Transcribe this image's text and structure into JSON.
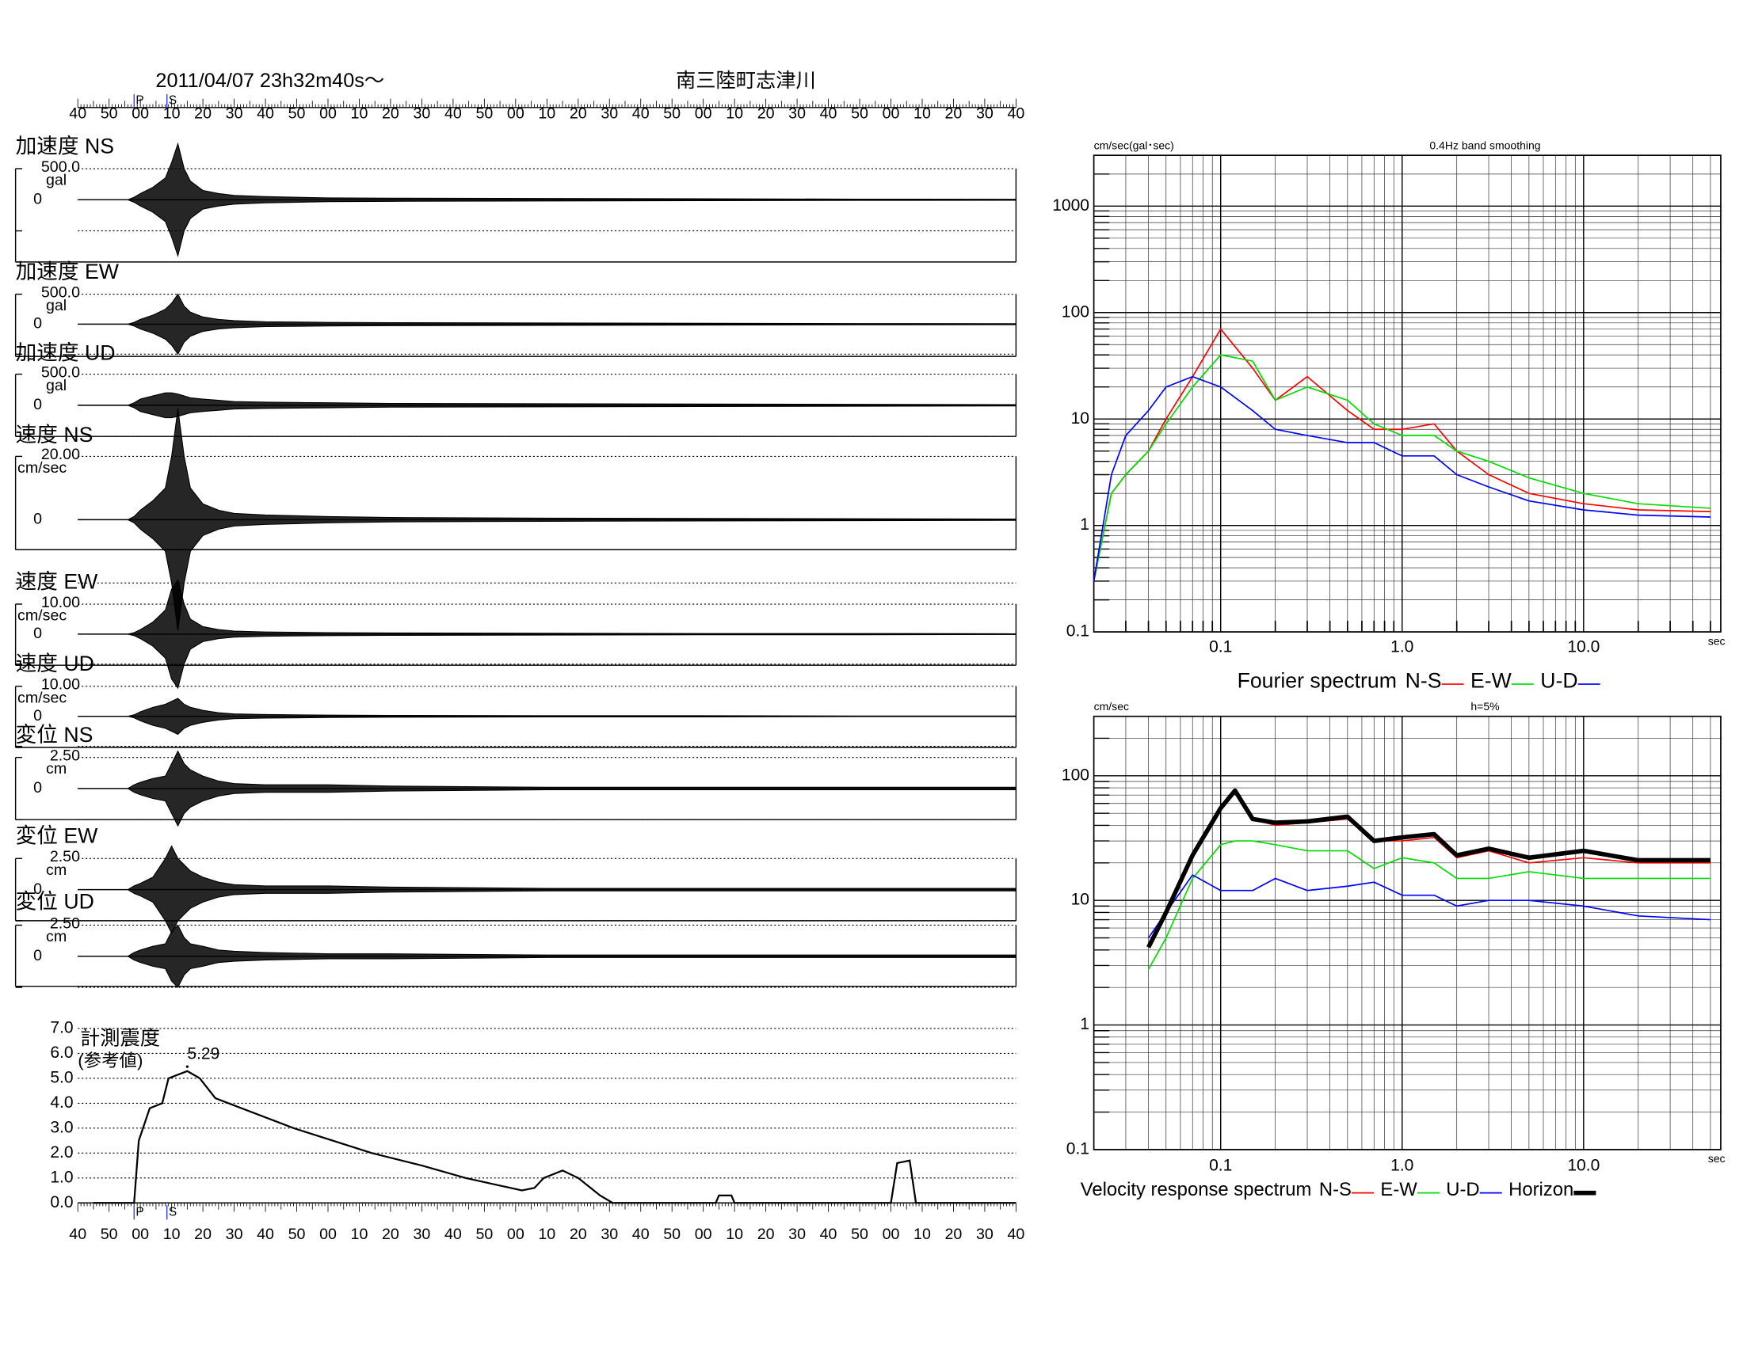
{
  "header": {
    "datetime": "2011/04/07  23h32m40s〜",
    "station": "南三陸町志津川"
  },
  "chart_data": [
    {
      "type": "waveforms",
      "tlim": [
        0,
        300
      ],
      "time_labels": [
        "40",
        "50",
        "00",
        "10",
        "20",
        "30",
        "40",
        "50",
        "00",
        "10",
        "20",
        "30",
        "40",
        "50",
        "00",
        "10",
        "20",
        "30",
        "40",
        "50",
        "00",
        "10",
        "20",
        "30",
        "40",
        "50",
        "00",
        "10",
        "20",
        "30",
        "40"
      ],
      "markers": [
        {
          "label": "P",
          "t": 18
        },
        {
          "label": "S",
          "t": 28.5
        }
      ],
      "color": "#000000",
      "t": [
        0,
        16,
        18,
        20,
        24,
        28,
        30,
        32,
        34,
        36,
        40,
        45,
        50,
        60,
        80,
        100,
        150,
        200,
        250,
        300
      ],
      "traces": [
        {
          "title": "加速度 NS",
          "scale": {
            "value": 500,
            "label": "500.0"
          },
          "unit": "gal",
          "zero": 0,
          "values": [
            0,
            0,
            40,
            100,
            200,
            350,
            600,
            900,
            500,
            300,
            150,
            100,
            70,
            50,
            30,
            25,
            20,
            15,
            10,
            8
          ]
        },
        {
          "title": "加速度 EW",
          "scale": {
            "value": 500,
            "label": "500.0"
          },
          "unit": "gal",
          "zero": 0,
          "values": [
            0,
            0,
            30,
            80,
            150,
            250,
            350,
            500,
            300,
            200,
            120,
            80,
            60,
            40,
            30,
            25,
            20,
            15,
            10,
            8
          ]
        },
        {
          "title": "加速度 UD",
          "scale": {
            "value": 500,
            "label": "500.0"
          },
          "unit": "gal",
          "zero": 0,
          "values": [
            0,
            0,
            40,
            100,
            150,
            200,
            200,
            180,
            150,
            120,
            100,
            80,
            60,
            50,
            40,
            30,
            25,
            20,
            15,
            10
          ]
        },
        {
          "title": "速度 NS",
          "scale": {
            "value": 20,
            "label": "20.00"
          },
          "unit": "cm/sec",
          "zero": 0,
          "values": [
            0,
            0,
            1,
            3,
            6,
            10,
            20,
            35,
            20,
            10,
            5,
            3,
            2,
            1.5,
            1,
            0.7,
            0.5,
            0.4,
            0.3,
            0.2
          ]
        },
        {
          "title": "速度 EW",
          "scale": {
            "value": 10,
            "label": "10.00"
          },
          "unit": "cm/sec",
          "zero": 0,
          "values": [
            0,
            0,
            0.5,
            1.5,
            4,
            8,
            15,
            18,
            10,
            5,
            2.5,
            1.5,
            1,
            0.7,
            0.5,
            0.4,
            0.3,
            0.2,
            0.2,
            0.1
          ]
        },
        {
          "title": "速度 UD",
          "scale": {
            "value": 10,
            "label": "10.00"
          },
          "unit": "cm/sec",
          "zero": 0,
          "values": [
            0,
            0,
            0.5,
            1.5,
            3,
            4,
            5,
            6,
            4,
            3,
            2,
            1.2,
            0.8,
            0.6,
            0.4,
            0.3,
            0.2,
            0.2,
            0.1,
            0.1
          ]
        },
        {
          "title": "変位 NS",
          "scale": {
            "value": 2.5,
            "label": "2.50"
          },
          "unit": "cm",
          "zero": 0,
          "values": [
            0,
            0,
            0.3,
            0.5,
            0.8,
            1,
            2,
            3,
            2,
            1.5,
            1,
            0.6,
            0.4,
            0.3,
            0.3,
            0.2,
            0.1,
            0.1,
            0.1,
            0.1
          ]
        },
        {
          "title": "変位 EW",
          "scale": {
            "value": 2.5,
            "label": "2.50"
          },
          "unit": "cm",
          "zero": 0,
          "values": [
            0,
            0,
            0.3,
            0.5,
            1,
            2.5,
            3.5,
            2.5,
            2,
            1.5,
            1,
            0.6,
            0.4,
            0.3,
            0.3,
            0.2,
            0.1,
            0.1,
            0.1,
            0.1
          ]
        },
        {
          "title": "変位 UD",
          "scale": {
            "value": 2.5,
            "label": "2.50"
          },
          "unit": "cm",
          "zero": 0,
          "values": [
            0,
            0,
            0.3,
            0.5,
            0.8,
            1,
            2,
            2.5,
            1.5,
            1,
            0.8,
            0.5,
            0.4,
            0.3,
            0.2,
            0.2,
            0.1,
            0.1,
            0.1,
            0.1
          ]
        }
      ]
    },
    {
      "type": "line",
      "title": "計測震度",
      "subtitle": "(参考値)",
      "color": "#000000",
      "t": [
        5,
        18,
        19.5,
        23,
        27,
        29,
        35,
        39,
        44,
        69,
        94,
        110,
        124,
        142,
        146,
        149,
        155,
        160,
        164,
        167,
        171,
        204,
        205,
        209,
        210,
        260,
        262,
        266,
        268,
        300
      ],
      "values": [
        0,
        0,
        2.5,
        3.8,
        4.0,
        5.0,
        5.29,
        5.0,
        4.2,
        3.0,
        2.0,
        1.5,
        1.0,
        0.5,
        0.6,
        1.0,
        1.3,
        1.0,
        0.6,
        0.3,
        0,
        0,
        0.3,
        0.3,
        0,
        0,
        1.6,
        1.7,
        0,
        0
      ],
      "peak": {
        "t": 35,
        "value": 5.29
      },
      "ylim": [
        0,
        7
      ],
      "yticks": [
        {
          "value": 0,
          "label": "0.0"
        },
        {
          "value": 1,
          "label": "1.0"
        },
        {
          "value": 2,
          "label": "2.0"
        },
        {
          "value": 3,
          "label": "3.0"
        },
        {
          "value": 4,
          "label": "4.0"
        },
        {
          "value": 5,
          "label": "5.0"
        },
        {
          "value": 6,
          "label": "6.0"
        },
        {
          "value": 7,
          "label": "7.0"
        }
      ],
      "grid": true
    },
    {
      "type": "logline",
      "title": "0.4Hz band smoothing",
      "ylabel": "cm/sec(gal･sec)",
      "xlabel": "sec",
      "legend_title": "Fourier spectrum",
      "log_x": true,
      "log_y": true,
      "grid": true,
      "xlim": [
        0.02,
        57
      ],
      "ylim": [
        0.1,
        3000
      ],
      "xticks": [
        0.1,
        {
          "value": 1,
          "label": "1.0"
        },
        {
          "value": 10,
          "label": "10.0"
        }
      ],
      "yticks": [
        0.1,
        1,
        10,
        100,
        1000
      ],
      "x": [
        0.02,
        0.025,
        0.03,
        0.04,
        0.05,
        0.07,
        0.1,
        0.15,
        0.2,
        0.3,
        0.5,
        0.7,
        1,
        1.5,
        2,
        3,
        5,
        10,
        20,
        50
      ],
      "series": [
        {
          "name": "N-S",
          "color": "#ff0000",
          "width": 1.2,
          "values": [
            0.3,
            2,
            3,
            5,
            10,
            25,
            70,
            30,
            15,
            25,
            12,
            8,
            8,
            9,
            5,
            3,
            2,
            1.6,
            1.4,
            1.35
          ]
        },
        {
          "name": "E-W",
          "color": "#00dd00",
          "width": 1.2,
          "values": [
            0.3,
            2,
            3,
            5,
            9,
            20,
            40,
            35,
            15,
            20,
            15,
            9,
            7,
            7,
            5,
            4,
            2.8,
            2,
            1.6,
            1.45
          ]
        },
        {
          "name": "U-D",
          "color": "#0000ff",
          "width": 1.2,
          "values": [
            0.3,
            3,
            7,
            12,
            20,
            25,
            20,
            12,
            8,
            7,
            6,
            6,
            4.5,
            4.5,
            3,
            2.3,
            1.7,
            1.4,
            1.25,
            1.2
          ]
        }
      ]
    },
    {
      "type": "logline",
      "title": "h=5%",
      "ylabel": "cm/sec",
      "xlabel": "sec",
      "legend_title": "Velocity response spectrum",
      "log_x": true,
      "log_y": true,
      "grid": true,
      "xlim": [
        0.02,
        57
      ],
      "ylim": [
        0.1,
        300
      ],
      "xticks": [
        0.1,
        {
          "value": 1,
          "label": "1.0"
        },
        {
          "value": 10,
          "label": "10.0"
        }
      ],
      "yticks": [
        0.1,
        1,
        10,
        100
      ],
      "x": [
        0.04,
        0.05,
        0.07,
        0.1,
        0.12,
        0.15,
        0.2,
        0.3,
        0.5,
        0.7,
        1,
        1.5,
        2,
        3,
        5,
        10,
        20,
        50
      ],
      "series": [
        {
          "name": "N-S",
          "color": "#ff0000",
          "width": 1.2,
          "values": [
            4.5,
            8,
            22,
            55,
            75,
            45,
            40,
            42,
            45,
            30,
            30,
            32,
            22,
            25,
            20,
            22,
            20,
            20
          ]
        },
        {
          "name": "E-W",
          "color": "#00dd00",
          "width": 1.2,
          "values": [
            2.8,
            5,
            15,
            28,
            30,
            30,
            28,
            25,
            25,
            18,
            22,
            20,
            15,
            15,
            17,
            15,
            15,
            15
          ]
        },
        {
          "name": "U-D",
          "color": "#0000ff",
          "width": 1.2,
          "values": [
            5,
            8,
            16,
            12,
            12,
            12,
            15,
            12,
            13,
            14,
            11,
            11,
            9,
            10,
            10,
            9,
            7.5,
            7
          ]
        },
        {
          "name": "Horizon",
          "color": "#000000",
          "width": 4,
          "values": [
            4.2,
            8,
            23,
            55,
            76,
            45,
            42,
            43,
            47,
            30,
            32,
            34,
            23,
            26,
            22,
            25,
            21,
            21
          ]
        }
      ]
    }
  ]
}
